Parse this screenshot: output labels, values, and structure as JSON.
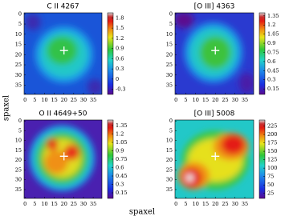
{
  "figure": {
    "xlabel": "spaxel",
    "ylabel": "spaxel"
  },
  "chart_data": [
    {
      "type": "heatmap",
      "title": "C II 4267",
      "xlim": [
        -0.5,
        39.5
      ],
      "ylim": [
        39.5,
        -0.5
      ],
      "xticks": [
        0,
        5,
        10,
        15,
        20,
        25,
        30,
        35
      ],
      "yticks": [
        0,
        5,
        10,
        15,
        20,
        25,
        30,
        35
      ],
      "zlim": [
        -0.45,
        1.95
      ],
      "zticks": [
        -0.3,
        0.0,
        0.3,
        0.6,
        0.9,
        1.2,
        1.5,
        1.8
      ],
      "center": {
        "x": 20,
        "y": 18
      }
    },
    {
      "type": "heatmap",
      "title": "[O III] 4363",
      "xlim": [
        -0.5,
        39.5
      ],
      "ylim": [
        39.5,
        -0.5
      ],
      "xticks": [
        0,
        5,
        10,
        15,
        20,
        25,
        30,
        35
      ],
      "yticks": [
        0,
        5,
        10,
        15,
        20,
        25,
        30,
        35
      ],
      "zlim": [
        0.06,
        1.4
      ],
      "zticks": [
        0.15,
        0.3,
        0.45,
        0.6,
        0.75,
        0.9,
        1.05,
        1.2,
        1.35
      ],
      "center": {
        "x": 20,
        "y": 18
      }
    },
    {
      "type": "heatmap",
      "title": "O II 4649+50",
      "xlim": [
        -0.5,
        39.5
      ],
      "ylim": [
        39.5,
        -0.5
      ],
      "xticks": [
        0,
        5,
        10,
        15,
        20,
        25,
        30,
        35
      ],
      "yticks": [
        0,
        5,
        10,
        15,
        20,
        25,
        30,
        35
      ],
      "zlim": [
        0.05,
        1.45
      ],
      "zticks": [
        0.15,
        0.3,
        0.45,
        0.6,
        0.75,
        0.9,
        1.05,
        1.2,
        1.35
      ],
      "center": {
        "x": 20,
        "y": 18
      }
    },
    {
      "type": "heatmap",
      "title": "[O III] 5008",
      "xlim": [
        -0.5,
        39.5
      ],
      "ylim": [
        39.5,
        -0.5
      ],
      "xticks": [
        0,
        5,
        10,
        15,
        20,
        25,
        30,
        35
      ],
      "yticks": [
        0,
        5,
        10,
        15,
        20,
        25,
        30,
        35
      ],
      "zlim": [
        10,
        243
      ],
      "zticks": [
        25,
        50,
        75,
        100,
        125,
        150,
        175,
        200,
        225
      ],
      "center": {
        "x": 20,
        "y": 18
      }
    }
  ]
}
